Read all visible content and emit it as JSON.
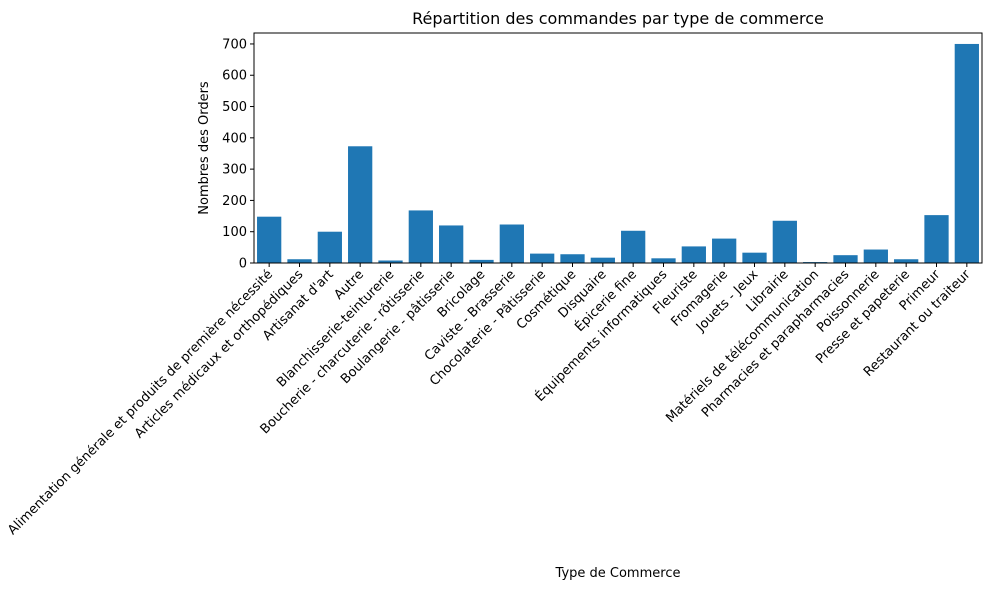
{
  "chart_data": {
    "type": "bar",
    "title": "Répartition des commandes par type de commerce",
    "xlabel": "Type de Commerce",
    "ylabel": "Nombres des Orders",
    "ylim": [
      0,
      735
    ],
    "yticks": [
      0,
      100,
      200,
      300,
      400,
      500,
      600,
      700
    ],
    "categories": [
      "Alimentation générale et produits de première nécessité",
      "Articles médicaux et orthopédiques",
      "Artisanat d'art",
      "Autre",
      "Blanchisserie-teinturerie",
      "Boucherie - charcuterie - rôtisserie",
      "Boulangerie - pâtisserie",
      "Bricolage",
      "Caviste - Brasserie",
      "Chocolaterie - Pâtisserie",
      "Cosmétique",
      "Disquaire",
      "Épicerie fine",
      "Équipements informatiques",
      "Fleuriste",
      "Fromagerie",
      "Jouets - Jeux",
      "Librairie",
      "Matériels de télécommunication",
      "Pharmacies et parapharmacies",
      "Poissonnerie",
      "Presse et papeterie",
      "Primeur",
      "Restaurant ou traiteur"
    ],
    "values": [
      148,
      12,
      100,
      373,
      8,
      168,
      120,
      10,
      123,
      30,
      28,
      17,
      103,
      15,
      53,
      78,
      33,
      135,
      3,
      25,
      43,
      12,
      153,
      700
    ],
    "color": "#1f77b4",
    "grid": false,
    "legend": "none"
  }
}
